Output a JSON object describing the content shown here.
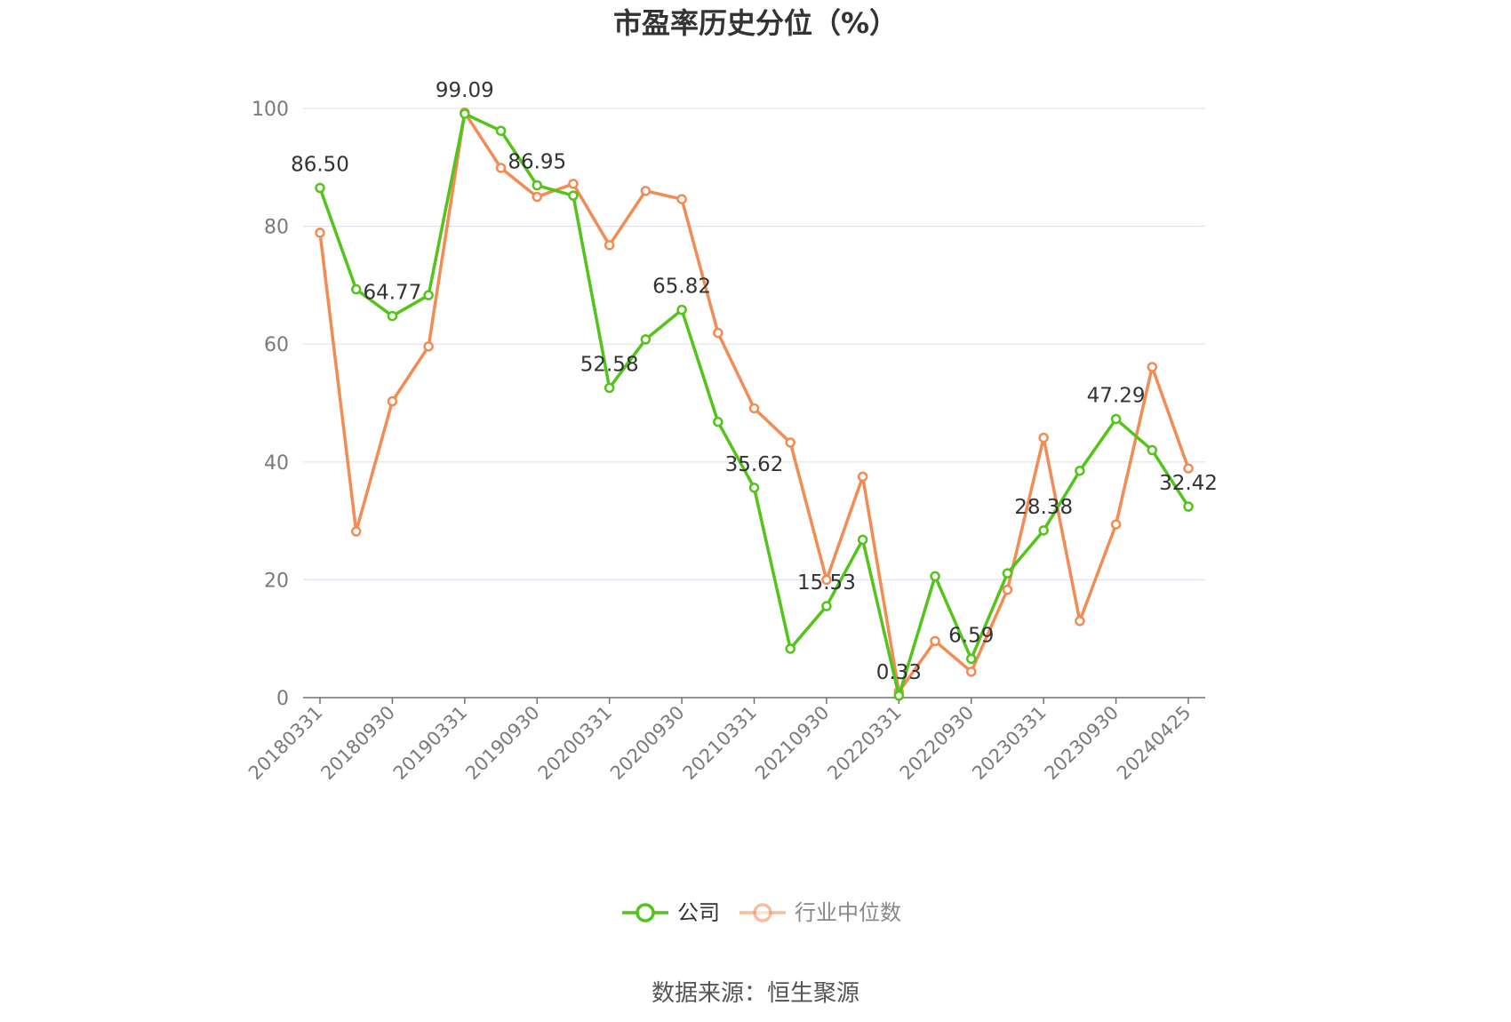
{
  "chart_data": {
    "type": "line",
    "title": "市盈率历史分位（%）",
    "source": "数据来源：恒生聚源",
    "ylim": [
      0,
      100
    ],
    "yticks": [
      "0",
      "20",
      "40",
      "60",
      "80",
      "100"
    ],
    "x_tick_labels": [
      "20180331",
      "20180930",
      "20190331",
      "20190930",
      "20200331",
      "20200930",
      "20210331",
      "20210930",
      "20220331",
      "20220930",
      "20230331",
      "20230930",
      "20240425"
    ],
    "legend_position": "bottom",
    "grid": true,
    "x": [
      "20180331",
      "20180630",
      "20180930",
      "20181231",
      "20190331",
      "20190630",
      "20190930",
      "20191231",
      "20200331",
      "20200630",
      "20200930",
      "20201231",
      "20210331",
      "20210630",
      "20210930",
      "20211231",
      "20220331",
      "20220630",
      "20220930",
      "20221231",
      "20230331",
      "20230630",
      "20230930",
      "20231231",
      "20240425"
    ],
    "series": [
      {
        "name": "公司",
        "color": "#52c41a",
        "values": [
          86.5,
          69.3,
          64.77,
          68.3,
          99.09,
          96.2,
          86.95,
          85.2,
          52.58,
          60.8,
          65.82,
          46.8,
          35.62,
          8.3,
          15.53,
          26.8,
          0.33,
          20.6,
          6.59,
          21.1,
          28.38,
          38.5,
          47.29,
          42.0,
          32.42
        ],
        "labels": {
          "0": "86.50",
          "2": "64.77",
          "4": "99.09",
          "6": "86.95",
          "8": "52.58",
          "10": "65.82",
          "12": "35.62",
          "14": "15.53",
          "16": "0.33",
          "18": "6.59",
          "20": "28.38",
          "22": "47.29",
          "24": "32.42"
        }
      },
      {
        "name": "行业中位数",
        "color": "#f28b54",
        "values": [
          78.9,
          28.2,
          50.3,
          59.6,
          99.3,
          89.9,
          85.0,
          87.2,
          76.8,
          86.0,
          84.6,
          61.9,
          49.1,
          43.3,
          20.0,
          37.5,
          1.0,
          9.6,
          4.4,
          18.3,
          44.1,
          13.0,
          29.4,
          56.1,
          38.9
        ]
      }
    ]
  }
}
